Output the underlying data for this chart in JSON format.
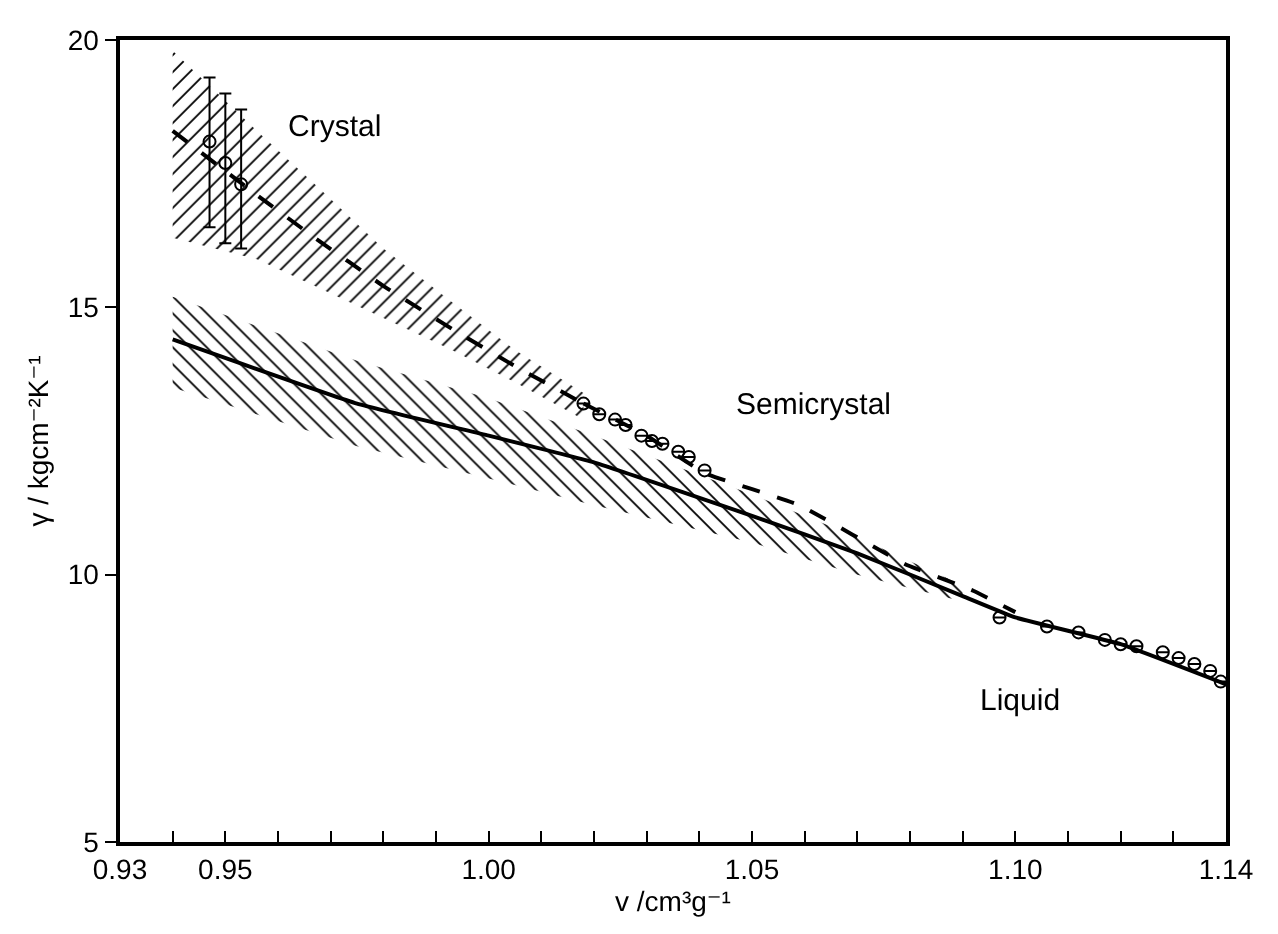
{
  "chart_data": {
    "type": "line",
    "xlabel": "v /cm³g⁻¹",
    "ylabel": "γ / kgcm⁻²K⁻¹",
    "xlim": [
      0.93,
      1.14
    ],
    "ylim": [
      5,
      20
    ],
    "xticks": [
      0.93,
      {
        "value": 0.94,
        "label": null
      },
      0.95,
      {
        "value": 0.96,
        "label": null
      },
      {
        "value": 0.97,
        "label": null
      },
      {
        "value": 0.98,
        "label": null
      },
      {
        "value": 0.99,
        "label": null
      },
      {
        "value": 1.0,
        "label": "1.00"
      },
      {
        "value": 1.01,
        "label": null
      },
      {
        "value": 1.02,
        "label": null
      },
      {
        "value": 1.03,
        "label": null
      },
      {
        "value": 1.04,
        "label": null
      },
      1.05,
      {
        "value": 1.06,
        "label": null
      },
      {
        "value": 1.07,
        "label": null
      },
      {
        "value": 1.08,
        "label": null
      },
      {
        "value": 1.09,
        "label": null
      },
      {
        "value": 1.1,
        "label": "1.10"
      },
      {
        "value": 1.11,
        "label": null
      },
      {
        "value": 1.12,
        "label": null
      },
      {
        "value": 1.13,
        "label": null
      },
      1.14
    ],
    "yticks": [
      5,
      10,
      15,
      20
    ],
    "grid": false,
    "legend": false,
    "series": [
      {
        "name": "Crystal",
        "color": "#000000",
        "line_style": "dashed",
        "marker": "none",
        "x": [
          0.94,
          0.956,
          0.967,
          0.98,
          0.993,
          1.005,
          1.018
        ],
        "values": [
          18.3,
          17.1,
          16.3,
          15.4,
          14.6,
          13.9,
          13.2
        ],
        "lower": [
          16.3,
          15.9,
          15.4,
          14.8,
          14.2,
          13.6,
          12.9
        ],
        "upper": [
          19.8,
          18.3,
          17.3,
          16.1,
          15.1,
          14.2,
          13.4
        ]
      },
      {
        "name": "Semicrystal",
        "color": "#000000",
        "line_style": "dashed",
        "marker": "none",
        "x": [
          1.018,
          1.03,
          1.041,
          1.059,
          1.079,
          1.092,
          1.1
        ],
        "values": [
          13.2,
          12.6,
          11.9,
          11.3,
          10.2,
          9.7,
          9.3
        ]
      },
      {
        "name": "Liquid",
        "color": "#000000",
        "line_style": "solid",
        "marker": "none",
        "x": [
          0.94,
          0.975,
          1.0,
          1.02,
          1.05,
          1.07,
          1.09,
          1.1,
          1.12,
          1.14
        ],
        "values": [
          14.4,
          13.2,
          12.6,
          12.1,
          11.1,
          10.4,
          9.6,
          9.2,
          8.7,
          7.95
        ],
        "lower": [
          13.5,
          12.4,
          11.8,
          11.3,
          10.6,
          10.0,
          9.5,
          null,
          null,
          null
        ],
        "upper": [
          15.2,
          14.0,
          13.3,
          12.6,
          11.5,
          10.7,
          9.8,
          null,
          null,
          null
        ]
      },
      {
        "type": "scatter",
        "color": "#000000",
        "marker": "circle",
        "x": [
          0.947,
          0.95,
          0.953,
          1.018,
          1.021,
          1.024,
          1.026,
          1.029,
          1.031,
          1.033,
          1.036,
          1.038,
          1.041,
          1.097,
          1.106,
          1.112,
          1.117,
          1.12,
          1.123,
          1.128,
          1.131,
          1.134,
          1.137,
          1.139
        ],
        "values": [
          18.1,
          17.7,
          17.3,
          13.2,
          13.0,
          12.9,
          12.8,
          12.6,
          12.5,
          12.45,
          12.3,
          12.2,
          11.95,
          9.2,
          9.03,
          8.92,
          8.78,
          8.7,
          8.66,
          8.55,
          8.44,
          8.33,
          8.2,
          8.0
        ],
        "errors": [
          [
            16.5,
            19.3
          ],
          [
            16.2,
            19.0
          ],
          [
            16.1,
            18.7
          ],
          null,
          null,
          null,
          null,
          null,
          null,
          null,
          null,
          null,
          null,
          null,
          null,
          null,
          null,
          null,
          null,
          null,
          null,
          null,
          null,
          null
        ]
      }
    ]
  }
}
